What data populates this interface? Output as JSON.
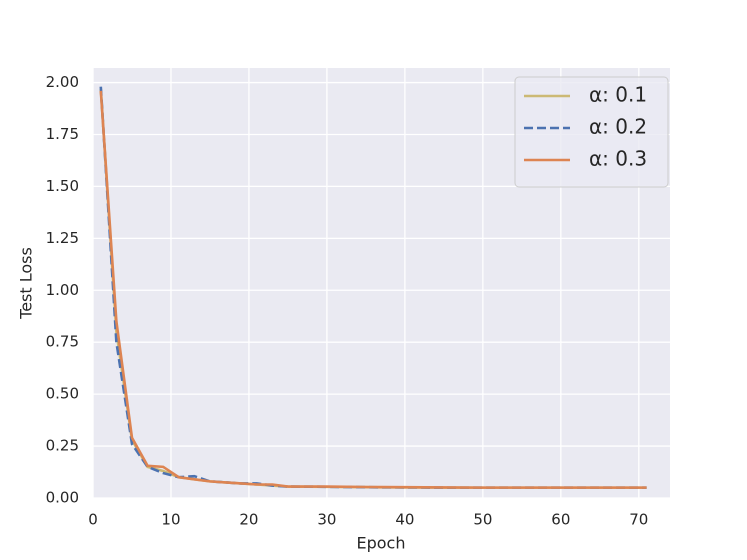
{
  "chart_data": {
    "type": "line",
    "xlabel": "Epoch",
    "ylabel": "Test Loss",
    "x": [
      1,
      3,
      5,
      7,
      9,
      11,
      13,
      15,
      17,
      19,
      21,
      23,
      25,
      30,
      35,
      40,
      45,
      50,
      55,
      60,
      65,
      71
    ],
    "series": [
      {
        "name": "α: 0.1",
        "color": "#ccb974",
        "linestyle": "solid",
        "values": [
          1.97,
          0.8,
          0.28,
          0.15,
          0.13,
          0.1,
          0.09,
          0.08,
          0.075,
          0.07,
          0.065,
          0.06,
          0.055,
          0.054,
          0.052,
          0.051,
          0.05,
          0.05,
          0.05,
          0.05,
          0.05,
          0.05
        ]
      },
      {
        "name": "α: 0.2",
        "color": "#4c72b0",
        "linestyle": "dashed",
        "values": [
          1.98,
          0.75,
          0.26,
          0.15,
          0.12,
          0.1,
          0.105,
          0.08,
          0.075,
          0.07,
          0.07,
          0.06,
          0.055,
          0.054,
          0.052,
          0.051,
          0.05,
          0.05,
          0.05,
          0.05,
          0.05,
          0.05
        ]
      },
      {
        "name": "α: 0.3",
        "color": "#dd8452",
        "linestyle": "solid",
        "values": [
          1.96,
          0.85,
          0.29,
          0.155,
          0.15,
          0.1,
          0.09,
          0.08,
          0.075,
          0.07,
          0.065,
          0.065,
          0.055,
          0.055,
          0.053,
          0.052,
          0.051,
          0.05,
          0.05,
          0.05,
          0.05,
          0.05
        ]
      }
    ],
    "xlim": [
      0,
      74
    ],
    "ylim": [
      0,
      2.07
    ],
    "xticks": [
      0,
      10,
      20,
      30,
      40,
      50,
      60,
      70
    ],
    "yticks": [
      {
        "value": 0,
        "label": "0.00"
      },
      0.25,
      {
        "value": 0.5,
        "label": "0.50"
      },
      0.75,
      {
        "value": 1,
        "label": "1.00"
      },
      1.25,
      {
        "value": 1.5,
        "label": "1.50"
      },
      1.75,
      {
        "value": 2,
        "label": "2.00"
      }
    ],
    "grid": true,
    "legend": "upper right"
  }
}
